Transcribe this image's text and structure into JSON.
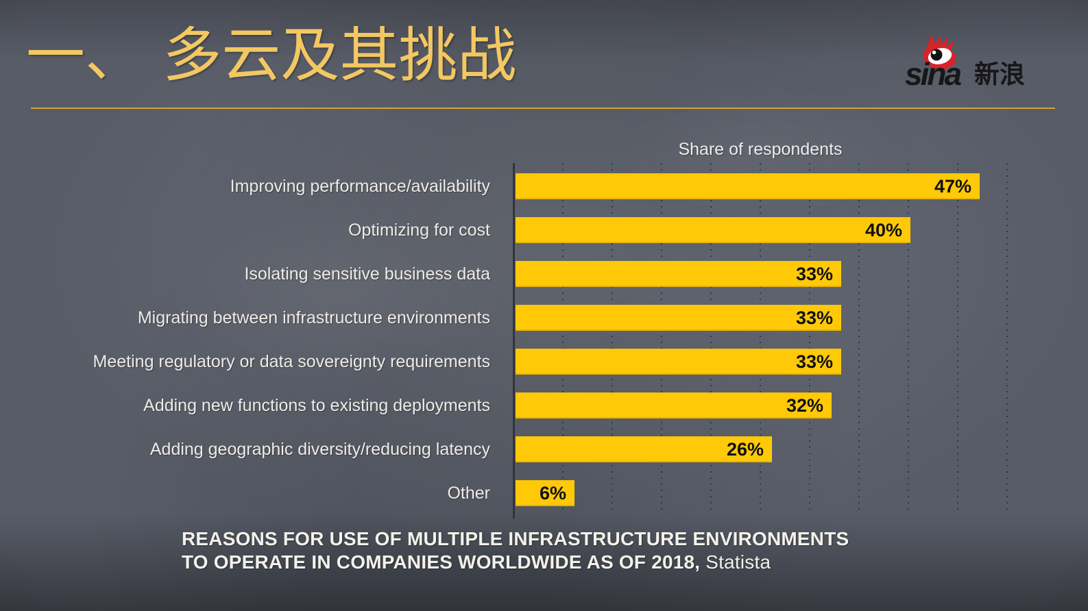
{
  "slide": {
    "title": "一、 多云及其挑战",
    "logo": {
      "latin": "sina",
      "cjk": "新浪"
    },
    "caption": {
      "line1": "REASONS FOR USE OF MULTIPLE INFRASTRUCTURE ENVIRONMENTS",
      "line2_bold": "TO OPERATE IN COMPANIES WORLDWIDE AS OF 2018,",
      "source": "Statista"
    }
  },
  "colors": {
    "background": "#535762",
    "title_gold": "#F3C862",
    "rule_gold": "#D5A62F",
    "bar_yellow": "#FFC907",
    "bar_value_text": "#111111",
    "category_text": "#EFECE7",
    "chart_title_text": "#EDEDED",
    "caption_text": "#F4F1EB",
    "gridline_dot": "#1D3E55",
    "axis_line": "#33343A",
    "logo_red": "#D7232A",
    "logo_text": "#17171A"
  },
  "chart_data": {
    "type": "bar",
    "orientation": "horizontal",
    "title": "Share of respondents",
    "categories": [
      "Improving performance/availability",
      "Optimizing for cost",
      "Isolating sensitive business data",
      "Migrating between infrastructure environments",
      "Meeting regulatory or data sovereignty requirements",
      "Adding new functions to existing deployments",
      "Adding geographic diversity/reducing latency",
      "Other"
    ],
    "values": [
      47,
      40,
      33,
      33,
      33,
      32,
      26,
      6
    ],
    "value_labels": [
      "47%",
      "40%",
      "33%",
      "33%",
      "33%",
      "32%",
      "26%",
      "6%"
    ],
    "xlabel": "",
    "ylabel": "",
    "xlim": [
      0,
      50
    ],
    "gridline_step_pct": 5,
    "grid": "dotted-vertical",
    "legend": "none"
  }
}
